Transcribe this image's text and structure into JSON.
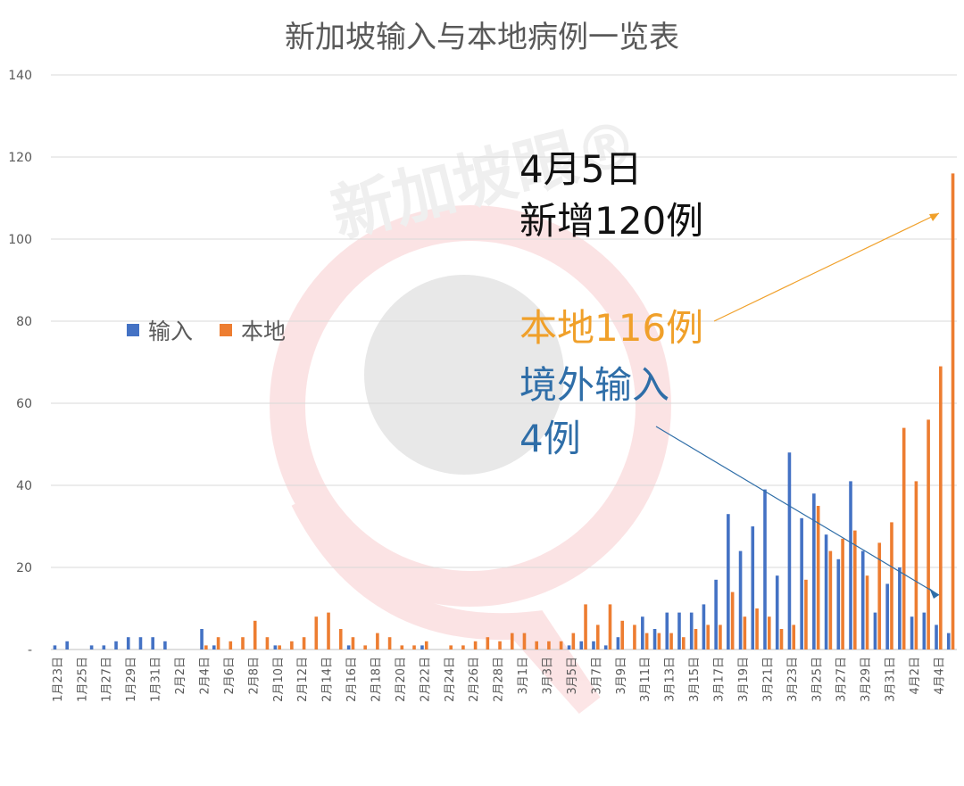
{
  "chart_data": {
    "type": "bar",
    "title": "新加坡输入与本地病例一览表",
    "ylim": [
      0,
      140
    ],
    "yticks": [
      0,
      20,
      40,
      60,
      80,
      100,
      120,
      140
    ],
    "ytick_labels": [
      "-",
      "20",
      "40",
      "60",
      "80",
      "100",
      "120",
      "140"
    ],
    "grid": true,
    "legend_position": "left-middle",
    "categories": [
      "1月23日",
      "1月24日",
      "1月25日",
      "1月26日",
      "1月27日",
      "1月28日",
      "1月29日",
      "1月30日",
      "1月31日",
      "2月1日",
      "2月2日",
      "2月3日",
      "2月4日",
      "2月5日",
      "2月6日",
      "2月7日",
      "2月8日",
      "2月9日",
      "2月10日",
      "2月11日",
      "2月12日",
      "2月13日",
      "2月14日",
      "2月15日",
      "2月16日",
      "2月17日",
      "2月18日",
      "2月19日",
      "2月20日",
      "2月21日",
      "2月22日",
      "2月23日",
      "2月24日",
      "2月25日",
      "2月26日",
      "2月27日",
      "2月28日",
      "2月29日",
      "3月1日",
      "3月2日",
      "3月3日",
      "3月4日",
      "3月5日",
      "3月6日",
      "3月7日",
      "3月8日",
      "3月9日",
      "3月10日",
      "3月11日",
      "3月12日",
      "3月13日",
      "3月14日",
      "3月15日",
      "3月16日",
      "3月17日",
      "3月18日",
      "3月19日",
      "3月20日",
      "3月21日",
      "3月22日",
      "3月23日",
      "3月24日",
      "3月25日",
      "3月26日",
      "3月27日",
      "3月28日",
      "3月29日",
      "3月30日",
      "3月31日",
      "4月1日",
      "4月2日",
      "4月3日",
      "4月4日",
      "4月5日"
    ],
    "tick_labels_shown": [
      "1月23日",
      "1月25日",
      "1月27日",
      "1月29日",
      "1月31日",
      "2月2日",
      "2月4日",
      "2月6日",
      "2月8日",
      "2月10日",
      "2月12日",
      "2月14日",
      "2月16日",
      "2月18日",
      "2月20日",
      "2月22日",
      "2月24日",
      "2月26日",
      "2月28日",
      "3月1日",
      "3月3日",
      "3月5日",
      "3月7日",
      "3月9日",
      "3月11日",
      "3月13日",
      "3月15日",
      "3月17日",
      "3月19日",
      "3月21日",
      "3月23日",
      "3月25日",
      "3月27日",
      "3月29日",
      "3月31日",
      "4月2日",
      "4月4日"
    ],
    "series": [
      {
        "name": "输入",
        "color": "#4472c4",
        "values": [
          1,
          2,
          0,
          1,
          1,
          2,
          3,
          3,
          3,
          2,
          0,
          0,
          5,
          1,
          0,
          0,
          0,
          0,
          1,
          0,
          0,
          0,
          0,
          0,
          1,
          0,
          0,
          0,
          0,
          0,
          1,
          0,
          0,
          0,
          0,
          0,
          0,
          0,
          0,
          0,
          0,
          0,
          1,
          2,
          2,
          1,
          3,
          0,
          8,
          5,
          9,
          9,
          9,
          11,
          17,
          33,
          24,
          30,
          39,
          18,
          48,
          32,
          38,
          28,
          22,
          41,
          24,
          9,
          16,
          20,
          8,
          9,
          6,
          4
        ]
      },
      {
        "name": "本地",
        "color": "#ed7d31",
        "values": [
          0,
          0,
          0,
          0,
          0,
          0,
          0,
          0,
          0,
          0,
          0,
          0,
          1,
          3,
          2,
          3,
          7,
          3,
          1,
          2,
          3,
          8,
          9,
          5,
          3,
          1,
          4,
          3,
          1,
          1,
          2,
          0,
          1,
          1,
          2,
          3,
          2,
          4,
          4,
          2,
          2,
          2,
          4,
          11,
          6,
          11,
          7,
          6,
          4,
          4,
          4,
          3,
          5,
          6,
          6,
          14,
          8,
          10,
          8,
          5,
          6,
          17,
          35,
          24,
          27,
          29,
          18,
          26,
          31,
          54,
          41,
          56,
          69,
          116
        ]
      }
    ]
  },
  "annotations": {
    "date": "4月5日",
    "new_total": "新增120例",
    "local": "本地116例",
    "imported_line1": "境外输入",
    "imported_line2": "4例"
  },
  "watermark": "新加坡眼®",
  "colors": {
    "imported": "#4472c4",
    "local": "#ed7d31",
    "annotation_orange": "#f0a02a",
    "annotation_blue": "#2f6ea8",
    "watermark_red": "#e8333a"
  }
}
